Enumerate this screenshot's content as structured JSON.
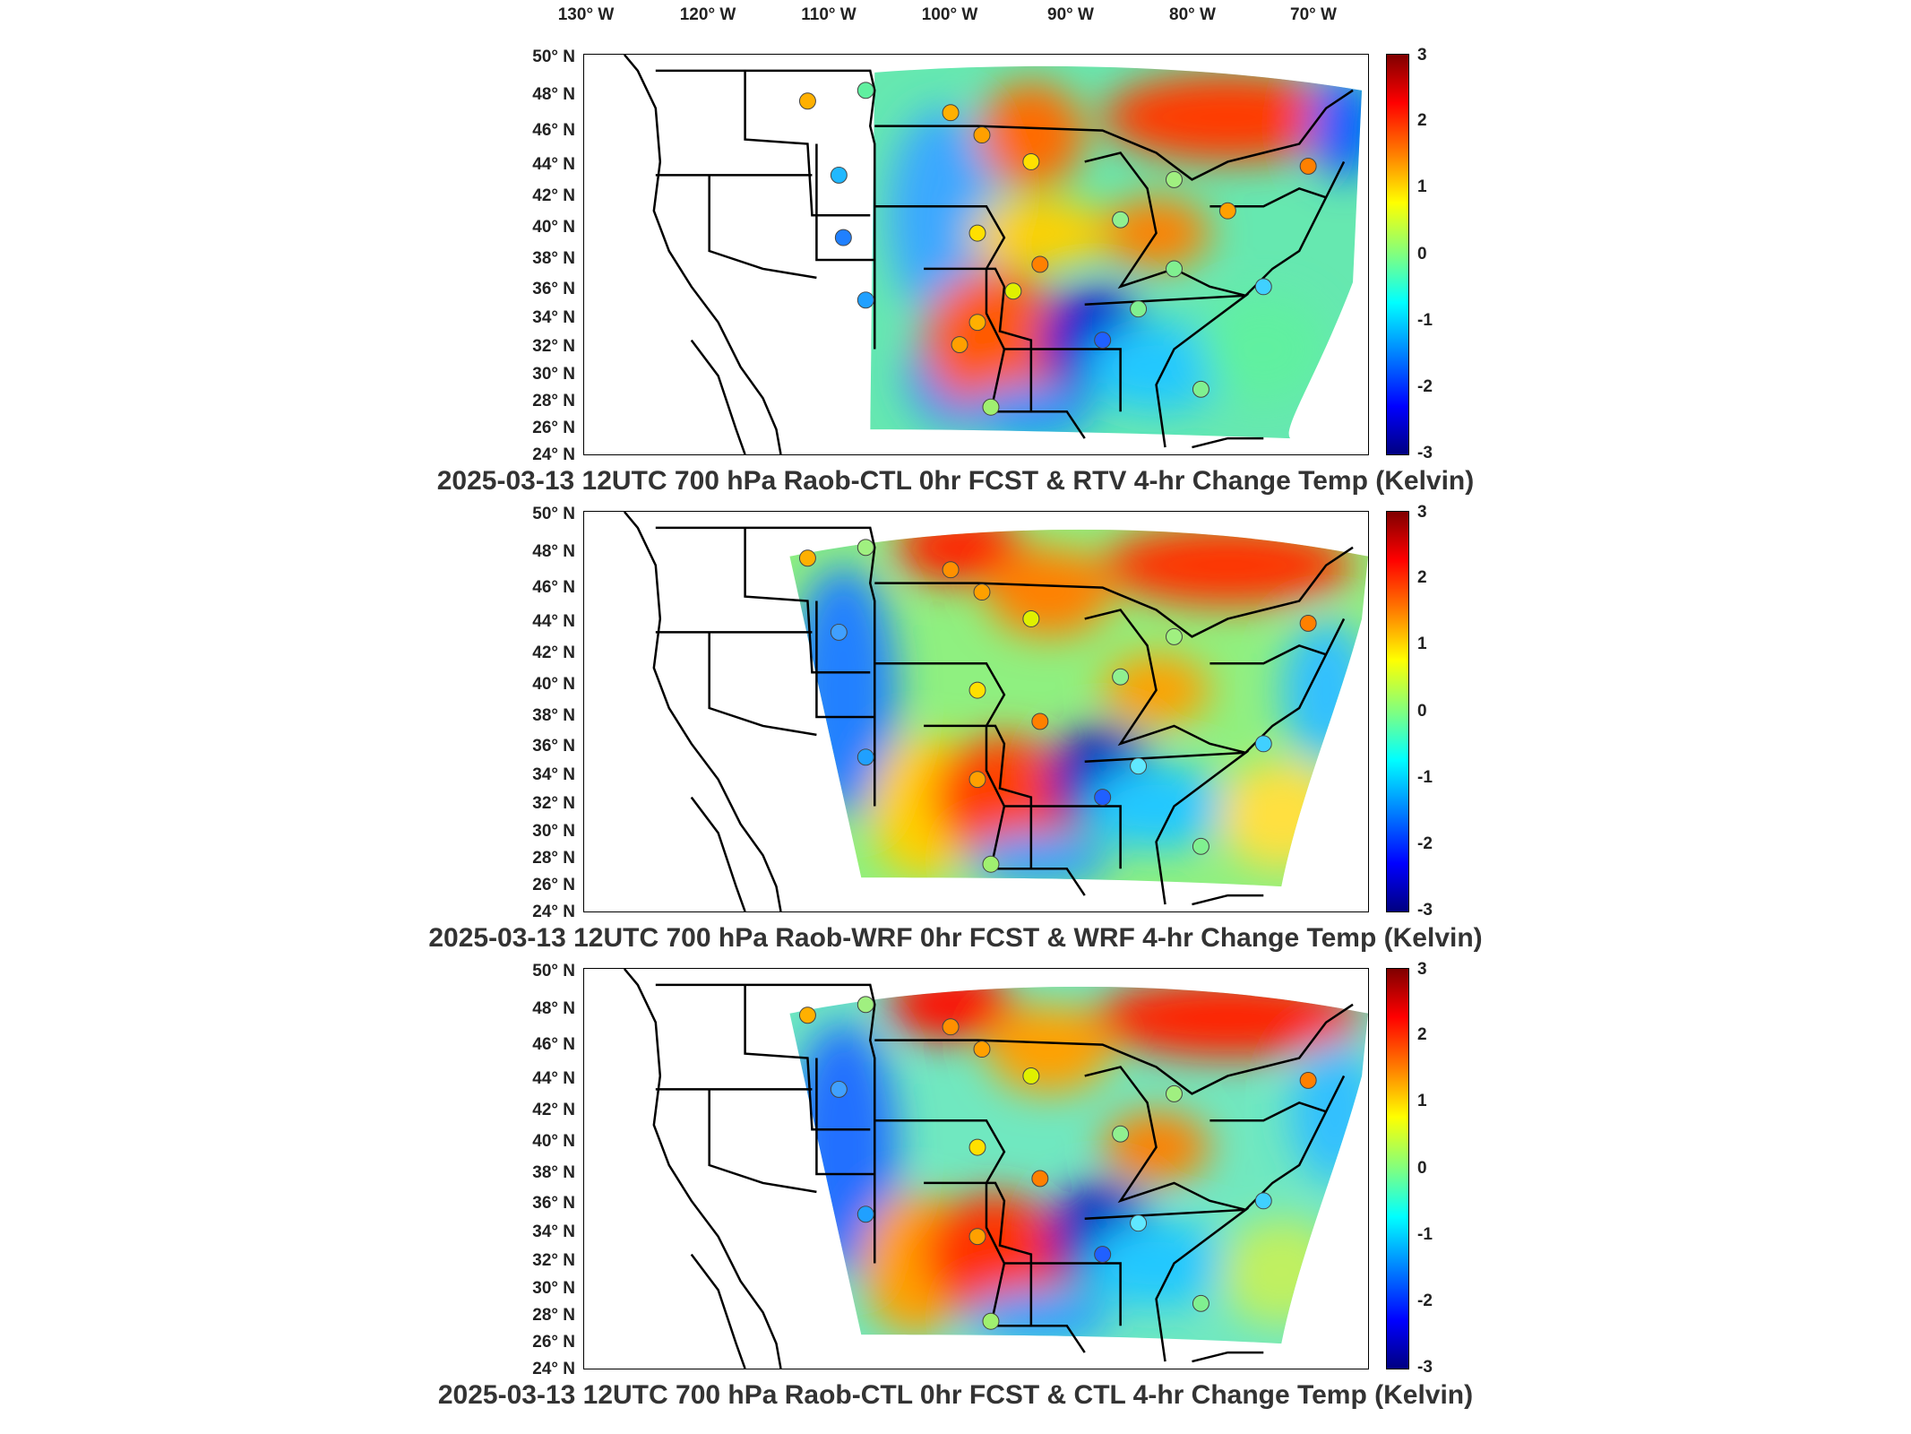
{
  "lon_labels": [
    "130° W",
    "120° W",
    "110° W",
    "100° W",
    "90° W",
    "80° W",
    "70° W"
  ],
  "lat_labels": [
    "50° N",
    "48° N",
    "46° N",
    "44° N",
    "42° N",
    "40° N",
    "38° N",
    "36° N",
    "34° N",
    "32° N",
    "30° N",
    "28° N",
    "26° N",
    "24° N"
  ],
  "colorbar_ticks": [
    "3",
    "2",
    "1",
    "0",
    "-1",
    "-2",
    "-3"
  ],
  "colorbar_colors": [
    "#800000",
    "#ff0000",
    "#ff8000",
    "#ffff00",
    "#80ff80",
    "#00ffff",
    "#0080ff",
    "#0000ff",
    "#000080"
  ],
  "panels": [
    {
      "title": "2025-03-13 12UTC 700 hPa Raob-CTL 0hr FCST & RTV 4-hr Change Temp (Kelvin)"
    },
    {
      "title": "2025-03-13 12UTC 700 hPa Raob-WRF 0hr FCST & WRF 4-hr Change Temp (Kelvin)"
    },
    {
      "title": "2025-03-13 12UTC 700 hPa Raob-CTL 0hr FCST & CTL 4-hr Change Temp (Kelvin)"
    }
  ]
}
